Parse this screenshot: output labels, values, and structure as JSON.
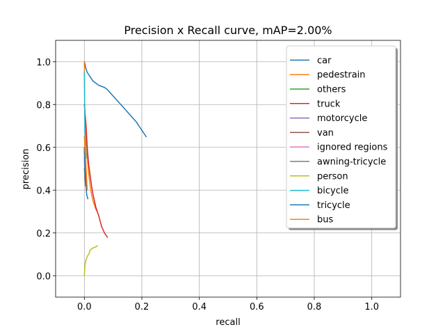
{
  "chart_data": {
    "type": "line",
    "title": "Precision x Recall curve, mAP=2.00%",
    "xlabel": "recall",
    "ylabel": "precision",
    "xlim": [
      -0.1,
      1.1
    ],
    "ylim": [
      -0.1,
      1.1
    ],
    "xticks": [
      0.0,
      0.2,
      0.4,
      0.6,
      0.8,
      1.0
    ],
    "yticks": [
      0.0,
      0.2,
      0.4,
      0.6,
      0.8,
      1.0
    ],
    "xtick_labels": [
      "0.0",
      "0.2",
      "0.4",
      "0.6",
      "0.8",
      "1.0"
    ],
    "ytick_labels": [
      "0.0",
      "0.2",
      "0.4",
      "0.6",
      "0.8",
      "1.0"
    ],
    "grid": true,
    "legend_position": "upper-right",
    "series": [
      {
        "name": "car",
        "color": "#1f77b4",
        "x": [
          0.0,
          0.002,
          0.005,
          0.01,
          0.02,
          0.03,
          0.04,
          0.05,
          0.06,
          0.07,
          0.08,
          0.1,
          0.12,
          0.14,
          0.16,
          0.18,
          0.2,
          0.215
        ],
        "y": [
          1.0,
          0.99,
          0.97,
          0.95,
          0.93,
          0.91,
          0.9,
          0.89,
          0.885,
          0.88,
          0.87,
          0.84,
          0.81,
          0.78,
          0.75,
          0.72,
          0.68,
          0.65
        ]
      },
      {
        "name": "pedestrain",
        "color": "#ff7f0e",
        "x": [
          0.0,
          0.001,
          0.003,
          0.005,
          0.008,
          0.01,
          0.015,
          0.02,
          0.025,
          0.03,
          0.035,
          0.04,
          0.045
        ],
        "y": [
          1.0,
          0.8,
          0.7,
          0.65,
          0.6,
          0.55,
          0.48,
          0.42,
          0.38,
          0.35,
          0.33,
          0.31,
          0.3
        ]
      },
      {
        "name": "others",
        "color": "#2ca02c",
        "x": [
          0.0,
          0.001,
          0.002
        ],
        "y": [
          0.6,
          0.5,
          0.45
        ]
      },
      {
        "name": "truck",
        "color": "#d62728",
        "x": [
          0.0,
          0.003,
          0.006,
          0.01,
          0.015,
          0.02,
          0.025,
          0.03,
          0.035,
          0.04,
          0.05,
          0.06,
          0.07,
          0.08
        ],
        "y": [
          0.8,
          0.75,
          0.7,
          0.6,
          0.52,
          0.47,
          0.42,
          0.38,
          0.35,
          0.32,
          0.28,
          0.23,
          0.2,
          0.18
        ]
      },
      {
        "name": "motorcycle",
        "color": "#9467bd",
        "x": [
          0.0,
          0.002,
          0.005,
          0.008
        ],
        "y": [
          0.55,
          0.5,
          0.45,
          0.42
        ]
      },
      {
        "name": "van",
        "color": "#8c564b",
        "x": [
          0.0,
          0.002,
          0.004,
          0.006,
          0.008
        ],
        "y": [
          0.6,
          0.55,
          0.5,
          0.45,
          0.4
        ]
      },
      {
        "name": "ignored regions",
        "color": "#e377c2",
        "x": [
          0.0,
          0.001
        ],
        "y": [
          0.55,
          0.5
        ]
      },
      {
        "name": "awning-tricycle",
        "color": "#7f7f7f",
        "x": [
          0.0,
          0.002,
          0.004
        ],
        "y": [
          0.5,
          0.45,
          0.42
        ]
      },
      {
        "name": "person",
        "color": "#bcbd22",
        "x": [
          0.0,
          0.002,
          0.005,
          0.01,
          0.015,
          0.02,
          0.03,
          0.04,
          0.045
        ],
        "y": [
          0.0,
          0.05,
          0.07,
          0.09,
          0.1,
          0.12,
          0.13,
          0.135,
          0.14
        ]
      },
      {
        "name": "bicycle",
        "color": "#17becf",
        "x": [
          0.0,
          0.002,
          0.004,
          0.006
        ],
        "y": [
          0.95,
          0.7,
          0.6,
          0.55
        ]
      },
      {
        "name": "tricycle",
        "color": "#1f77b4",
        "x": [
          0.0,
          0.002,
          0.004,
          0.008,
          0.012
        ],
        "y": [
          0.6,
          0.5,
          0.45,
          0.38,
          0.36
        ]
      },
      {
        "name": "bus",
        "color": "#ff7f0e",
        "x": [
          0.0,
          0.002,
          0.004,
          0.006,
          0.008,
          0.01
        ],
        "y": [
          0.65,
          0.6,
          0.55,
          0.5,
          0.45,
          0.4
        ]
      }
    ]
  }
}
